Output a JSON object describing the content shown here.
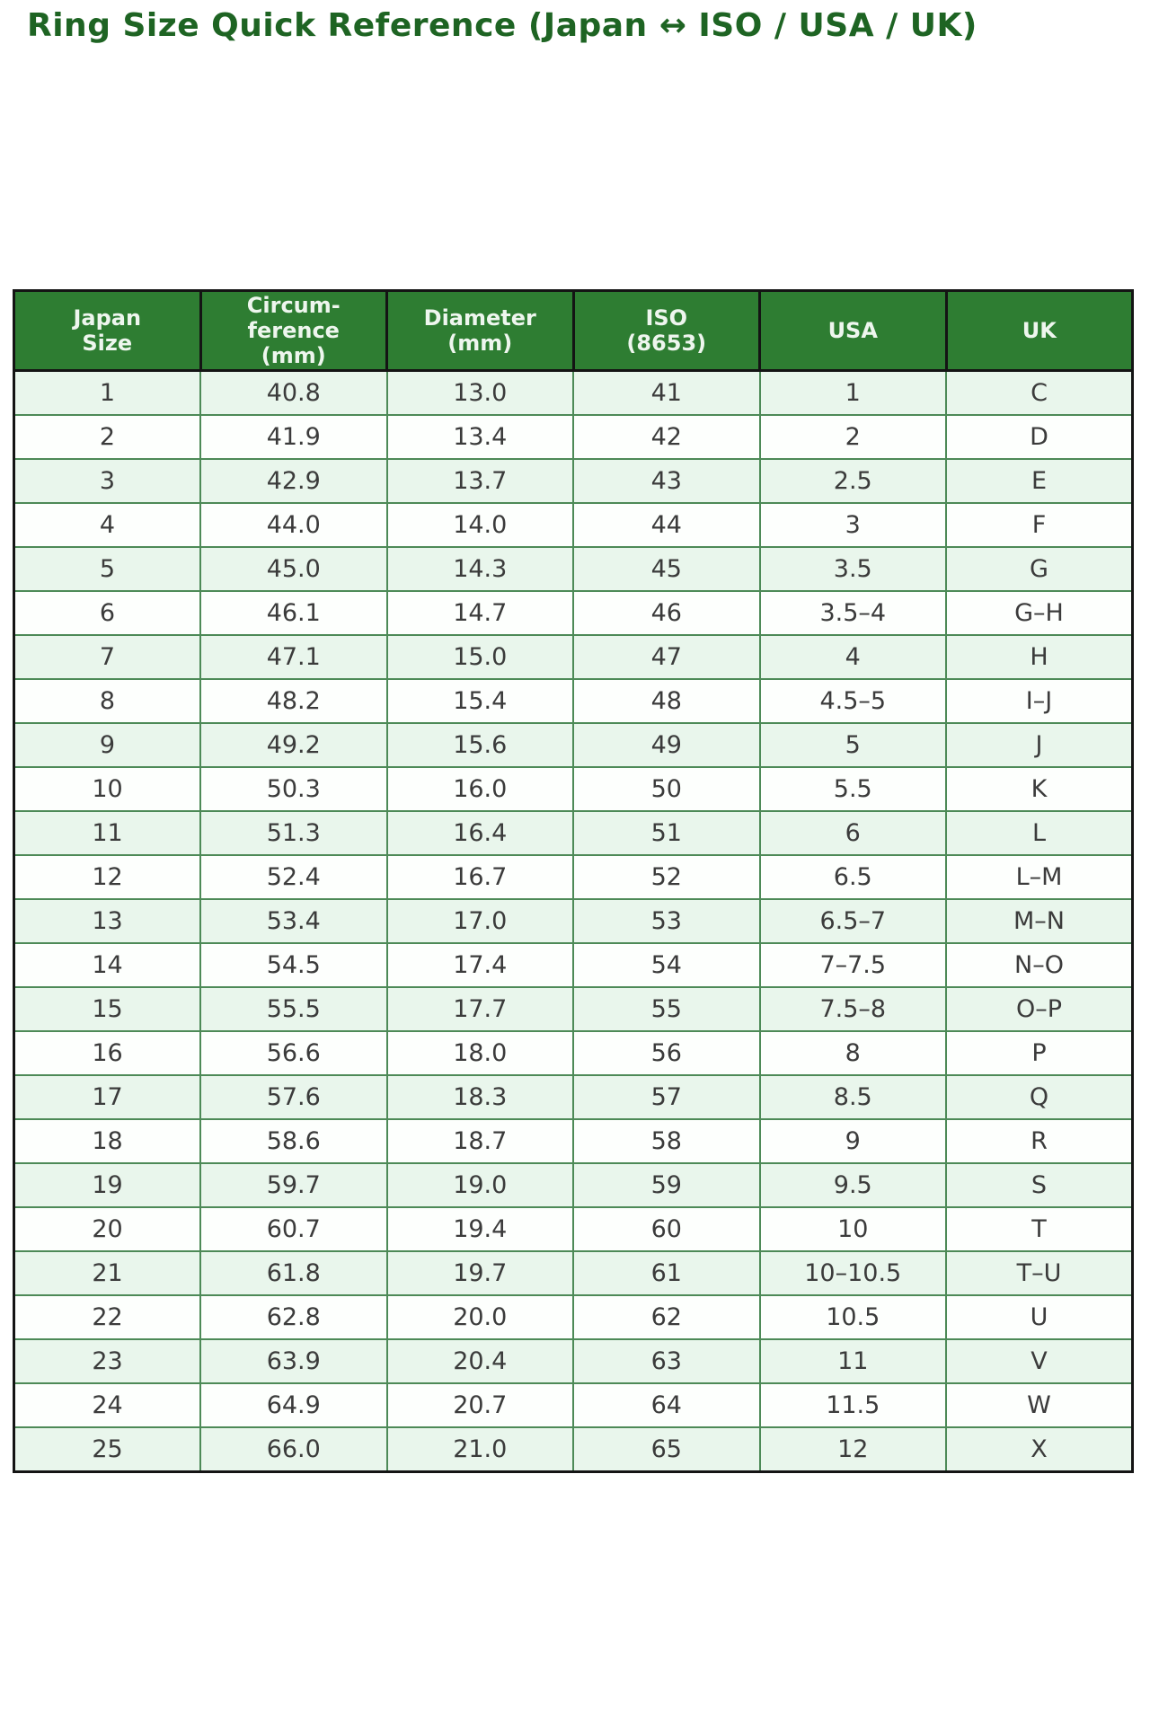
{
  "title": "Ring Size Quick Reference (Japan ↔ ISO / USA / UK)",
  "colors": {
    "title_text": "#1e6423",
    "header_bg": "#2e7d32",
    "header_text": "#eef6ee",
    "row_odd_bg": "#e9f6ec",
    "row_even_bg": "#fdfffd",
    "body_grid": "#4d8a57",
    "outer_border": "#141414",
    "cell_text": "#3b3b3b"
  },
  "table": {
    "columns": [
      "Japan\nSize",
      "Circum-\nference\n(mm)",
      "Diameter\n(mm)",
      "ISO\n(8653)",
      "USA",
      "UK"
    ],
    "rows": [
      [
        "1",
        "40.8",
        "13.0",
        "41",
        "1",
        "C"
      ],
      [
        "2",
        "41.9",
        "13.4",
        "42",
        "2",
        "D"
      ],
      [
        "3",
        "42.9",
        "13.7",
        "43",
        "2.5",
        "E"
      ],
      [
        "4",
        "44.0",
        "14.0",
        "44",
        "3",
        "F"
      ],
      [
        "5",
        "45.0",
        "14.3",
        "45",
        "3.5",
        "G"
      ],
      [
        "6",
        "46.1",
        "14.7",
        "46",
        "3.5–4",
        "G–H"
      ],
      [
        "7",
        "47.1",
        "15.0",
        "47",
        "4",
        "H"
      ],
      [
        "8",
        "48.2",
        "15.4",
        "48",
        "4.5–5",
        "I–J"
      ],
      [
        "9",
        "49.2",
        "15.6",
        "49",
        "5",
        "J"
      ],
      [
        "10",
        "50.3",
        "16.0",
        "50",
        "5.5",
        "K"
      ],
      [
        "11",
        "51.3",
        "16.4",
        "51",
        "6",
        "L"
      ],
      [
        "12",
        "52.4",
        "16.7",
        "52",
        "6.5",
        "L–M"
      ],
      [
        "13",
        "53.4",
        "17.0",
        "53",
        "6.5–7",
        "M–N"
      ],
      [
        "14",
        "54.5",
        "17.4",
        "54",
        "7–7.5",
        "N–O"
      ],
      [
        "15",
        "55.5",
        "17.7",
        "55",
        "7.5–8",
        "O–P"
      ],
      [
        "16",
        "56.6",
        "18.0",
        "56",
        "8",
        "P"
      ],
      [
        "17",
        "57.6",
        "18.3",
        "57",
        "8.5",
        "Q"
      ],
      [
        "18",
        "58.6",
        "18.7",
        "58",
        "9",
        "R"
      ],
      [
        "19",
        "59.7",
        "19.0",
        "59",
        "9.5",
        "S"
      ],
      [
        "20",
        "60.7",
        "19.4",
        "60",
        "10",
        "T"
      ],
      [
        "21",
        "61.8",
        "19.7",
        "61",
        "10–10.5",
        "T–U"
      ],
      [
        "22",
        "62.8",
        "20.0",
        "62",
        "10.5",
        "U"
      ],
      [
        "23",
        "63.9",
        "20.4",
        "63",
        "11",
        "V"
      ],
      [
        "24",
        "64.9",
        "20.7",
        "64",
        "11.5",
        "W"
      ],
      [
        "25",
        "66.0",
        "21.0",
        "65",
        "12",
        "X"
      ]
    ]
  }
}
